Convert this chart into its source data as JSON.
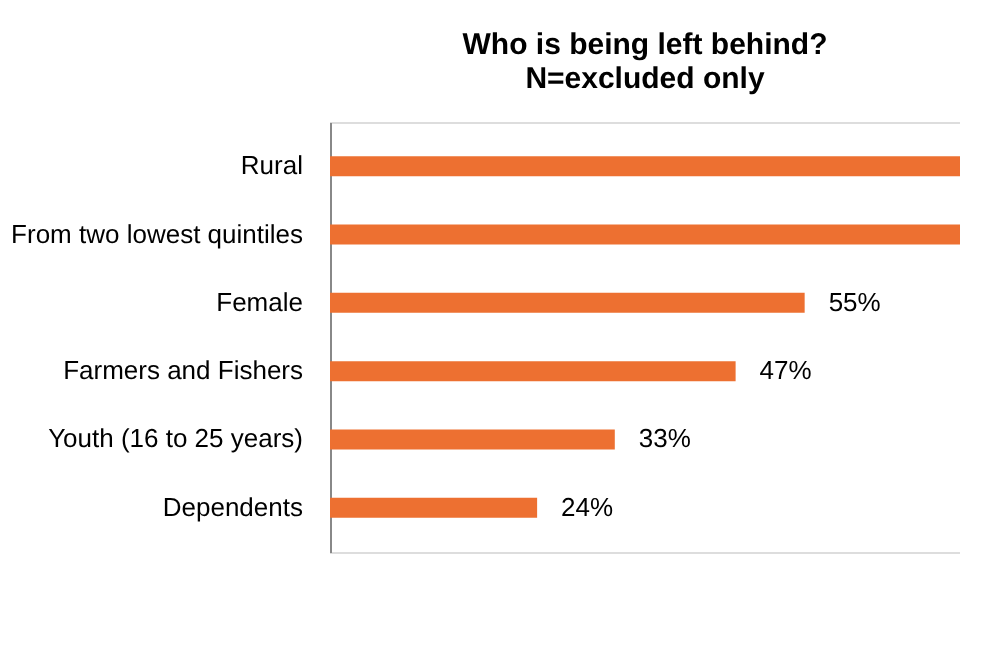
{
  "chart_data": {
    "type": "bar",
    "orientation": "horizontal",
    "title": [
      "Who is being left behind?",
      "N=excluded only"
    ],
    "categories": [
      "Rural",
      "From two lowest quintiles",
      "Female",
      "Farmers and Fishers",
      "Youth (16 to 25 years)",
      "Dependents"
    ],
    "values": [
      73,
      73,
      55,
      47,
      33,
      24
    ],
    "value_labels": [
      null,
      null,
      "55%",
      "47%",
      "33%",
      "24%"
    ],
    "color": "#ed7031",
    "xlim": [
      0,
      73
    ],
    "tick_labels": "y"
  }
}
